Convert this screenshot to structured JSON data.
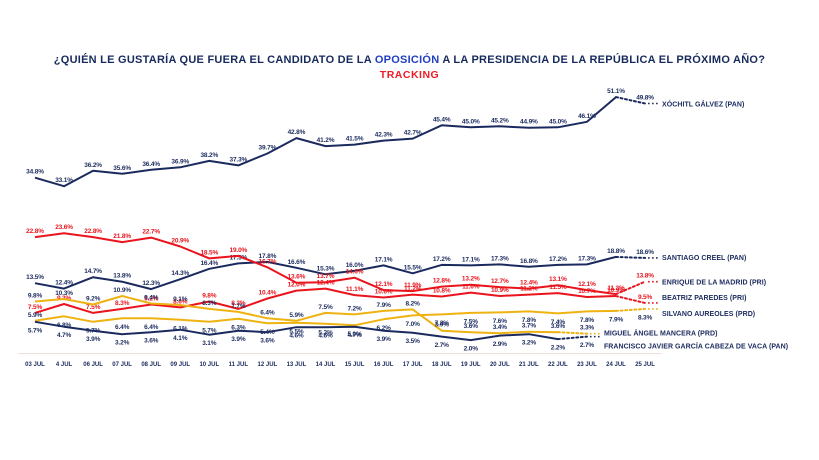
{
  "colors": {
    "navy": "#1b2a5e",
    "red": "#e9141d",
    "yellow": "#eeb211",
    "title": "#172a5c",
    "title_highlight": "#2140c0",
    "subtitle_red": "#ee1c25",
    "baseline": "#f3dede"
  },
  "title": {
    "prefix": "¿QUIÉN LE GUSTARÍA QUE FUERA EL CANDIDATO DE LA ",
    "highlight": "OPOSICIÓN",
    "suffix": " A LA PRESIDENCIA DE LA REPÚBLICA EL PRÓXIMO AÑO?",
    "subtitle": "TRACKING"
  },
  "chart_data": {
    "type": "line",
    "title": "¿QUIÉN LE GUSTARÍA QUE FUERA EL CANDIDATO DE LA OPOSICIÓN A LA PRESIDENCIA DE LA REPÚBLICA EL PRÓXIMO AÑO? TRACKING",
    "grid": false,
    "ylim": [
      0,
      55
    ],
    "legend_position": "right-of-line-ends",
    "x_labels": [
      "03 JUL",
      "4 JUL",
      "06 JUL",
      "07 JUL",
      "08 JUL",
      "09 JUL",
      "10 JUL",
      "11 JUL",
      "12 JUL",
      "13 JUL",
      "14 JUL",
      "15 JUL",
      "16 JUL",
      "17 JUL",
      "18 JUL",
      "19 JUL",
      "20 JUL",
      "21 JUL",
      "22 JUL",
      "23 JUL",
      "24 JUL",
      "25 JUL"
    ],
    "series": [
      {
        "id": "xochitl-galvez",
        "name": "XÓCHITL GÁLVEZ (PAN)",
        "color": "navy",
        "label_color": "navy",
        "label_side": "above",
        "legend_dy": 3,
        "values": [
          34.8,
          33.1,
          36.2,
          35.6,
          36.4,
          36.9,
          38.2,
          37.3,
          39.7,
          42.8,
          41.2,
          41.5,
          42.3,
          42.7,
          45.4,
          45.0,
          45.2,
          44.9,
          45.0,
          46.1,
          51.1,
          49.8
        ]
      },
      {
        "id": "santiago-creel",
        "name": "SANTIAGO CREEL (PAN)",
        "color": "navy",
        "label_color": "navy",
        "label_side": "above",
        "legend_dy": 2,
        "values": [
          13.5,
          12.4,
          14.7,
          13.8,
          12.3,
          14.3,
          16.4,
          17.5,
          17.8,
          16.6,
          15.3,
          16.0,
          17.1,
          15.5,
          17.2,
          17.1,
          17.3,
          16.8,
          17.2,
          17.3,
          18.8,
          18.6
        ]
      },
      {
        "id": "enrique-de-la-madrid",
        "name": "ENRIQUE DE LA MADRID (PRI)",
        "color": "red",
        "label_color": "red",
        "label_side": "above",
        "legend_dy": 3,
        "values": [
          22.8,
          23.6,
          22.8,
          21.8,
          22.7,
          20.9,
          18.5,
          19.0,
          16.7,
          13.6,
          13.7,
          14.6,
          12.1,
          11.9,
          12.8,
          13.2,
          12.7,
          12.4,
          13.1,
          12.1,
          11.3,
          13.8
        ]
      },
      {
        "id": "beatriz-paredes",
        "name": "BEATRIZ PAREDES (PRI)",
        "color": "red",
        "label_color": "red",
        "label_side": "above",
        "legend_dy": -3,
        "values": [
          7.5,
          9.3,
          7.5,
          8.3,
          9.2,
          8.6,
          9.8,
          8.3,
          10.4,
          12.0,
          12.4,
          11.1,
          10.6,
          11.2,
          10.8,
          11.6,
          10.9,
          11.2,
          11.5,
          10.7,
          10.9,
          9.5
        ]
      },
      {
        "id": "silvano-aureoles",
        "name": "SILVANO AUREOLES (PRD)",
        "color": "yellow",
        "label_color": "navy",
        "label_side": "below",
        "label_side_overrides": {
          "0": "above"
        },
        "legend_dy": 7,
        "values": [
          5.9,
          6.8,
          5.7,
          6.4,
          6.4,
          6.1,
          5.7,
          6.3,
          5.4,
          5.5,
          5.3,
          5.0,
          6.2,
          7.0,
          7.2,
          7.5,
          7.6,
          7.8,
          7.4,
          7.8,
          7.9,
          8.3
        ]
      },
      {
        "id": "miguel-angel-mancera",
        "name": "MIGUEL ÁNGEL MANCERA (PRD)",
        "color": "yellow",
        "label_color": "navy",
        "label_side": "above",
        "legend_dy": 2,
        "values": [
          9.8,
          10.3,
          9.2,
          10.9,
          9.4,
          9.1,
          8.3,
          7.7,
          6.4,
          5.9,
          7.5,
          7.2,
          7.9,
          8.2,
          3.9,
          3.6,
          3.4,
          3.7,
          3.6,
          3.3,
          null,
          null
        ]
      },
      {
        "id": "garcia-cabeza-de-vaca",
        "name": "FRANCISCO JAVIER GARCÍA CABEZA DE VACA (PAN)",
        "color": "navy",
        "label_color": "navy",
        "label_side": "below",
        "legend_dy": 12,
        "values": [
          5.7,
          4.7,
          3.9,
          3.2,
          3.6,
          4.1,
          3.1,
          3.9,
          3.6,
          4.6,
          4.6,
          4.7,
          3.9,
          3.5,
          2.7,
          2.0,
          2.9,
          3.2,
          2.2,
          2.7,
          null,
          null
        ]
      }
    ]
  }
}
